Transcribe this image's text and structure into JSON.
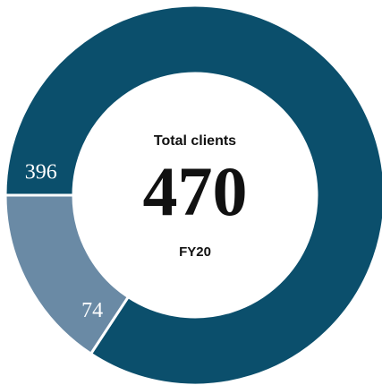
{
  "chart_data": {
    "type": "donut",
    "title": "Total clients",
    "center_value": 470,
    "subtitle": "FY20",
    "values": [
      396,
      74
    ],
    "colors": [
      "#0b4f6c",
      "#6a8aa5"
    ],
    "start_angle": 270,
    "direction": "clockwise"
  }
}
